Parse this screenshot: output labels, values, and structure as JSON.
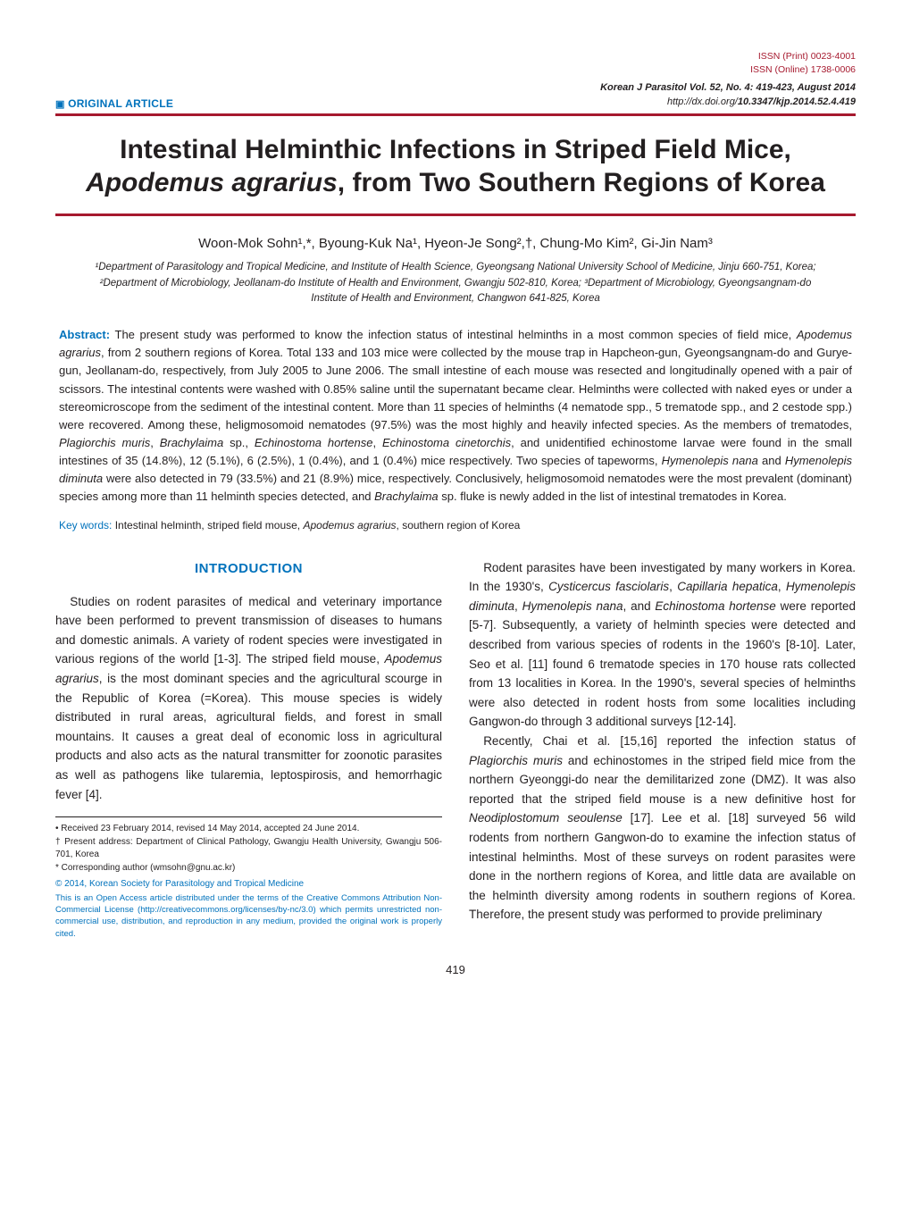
{
  "meta": {
    "issn_print": "ISSN (Print)   0023-4001",
    "issn_online": "ISSN (Online) 1738-0006",
    "article_tag": "ORIGINAL ARTICLE",
    "journal_line": "Korean J Parasitol Vol. 52, No. 4: 419-423, August 2014",
    "doi_prefix": "http://dx.doi.org/",
    "doi_bold": "10.3347/kjp.2014.52.4.419"
  },
  "title": {
    "line1": "Intestinal Helminthic Infections in Striped Field Mice,",
    "line2_italic": "Apodemus agrarius",
    "line2_rest": ", from Two Southern Regions of Korea"
  },
  "authors": "Woon-Mok Sohn¹,*, Byoung-Kuk Na¹, Hyeon-Je Song²,†, Chung-Mo Kim², Gi-Jin Nam³",
  "affils": "¹Department of Parasitology and Tropical Medicine, and Institute of Health Science, Gyeongsang National University School of Medicine, Jinju 660-751, Korea; ²Department of Microbiology, Jeollanam-do Institute of Health and Environment, Gwangju 502-810, Korea; ³Department of Microbiology, Gyeongsangnam-do Institute of Health and Environment, Changwon 641-825, Korea",
  "abstract": {
    "label": "Abstract:",
    "text_parts": [
      " The present study was performed to know the infection status of intestinal helminths in a most common species of field mice, ",
      {
        "i": "Apodemus agrarius"
      },
      ", from 2 southern regions of Korea. Total 133 and 103 mice were collected by the mouse trap in Hapcheon-gun, Gyeongsangnam-do and Gurye-gun, Jeollanam-do, respectively, from July 2005 to June 2006. The small intestine of each mouse was resected and longitudinally opened with a pair of scissors. The intestinal contents were washed with 0.85% saline until the supernatant became clear. Helminths were collected with naked eyes or under a stereomicroscope from the sediment of the intestinal content. More than 11 species of helminths (4 nematode spp., 5 trematode spp., and 2 cestode spp.) were recovered. Among these, heligmosomoid nematodes (97.5%) was the most highly and heavily infected species. As the members of trematodes, ",
      {
        "i": "Plagiorchis muris"
      },
      ", ",
      {
        "i": "Brachylaima"
      },
      " sp., ",
      {
        "i": "Echinostoma hortense"
      },
      ", ",
      {
        "i": "Echinostoma cinetorchis"
      },
      ", and unidentified echinostome larvae were found in the small intestines of 35 (14.8%), 12 (5.1%), 6 (2.5%), 1 (0.4%), and 1 (0.4%) mice respectively. Two species of tapeworms, ",
      {
        "i": "Hymenolepis nana"
      },
      " and ",
      {
        "i": "Hymenolepis diminuta"
      },
      " were also detected in 79 (33.5%) and 21 (8.9%) mice, respectively. Conclusively, heligmosomoid nematodes were the most prevalent (dominant) species among more than 11 helminth species detected, and ",
      {
        "i": "Brachylaima"
      },
      " sp. fluke is newly added in the list of intestinal trematodes in Korea."
    ]
  },
  "keywords": {
    "label": "Key words:",
    "text": " Intestinal helminth, striped field mouse, ",
    "italic": "Apodemus agrarius",
    "tail": ", southern region of Korea"
  },
  "section_head": "INTRODUCTION",
  "left_col": {
    "p1_a": "Studies on rodent parasites of medical and veterinary importance have been performed to prevent transmission of diseases to humans and domestic animals. A variety of rodent species were investigated in various regions of the world [1-3]. The striped field mouse, ",
    "p1_i": "Apodemus agrarius",
    "p1_b": ", is the most dominant species and the agricultural scourge in the Republic of Korea (=Korea). This mouse species is widely distributed in rural areas, agricultural fields, and forest in small mountains. It causes a great deal of economic loss in agricultural products and also acts as the natural transmitter for zoonotic parasites as well as pathogens like tularemia, leptospirosis, and hemorrhagic fever [4]."
  },
  "right_col": {
    "p1_a": "Rodent parasites have been investigated by many workers in Korea. In the 1930's, ",
    "p1_i1": "Cysticercus fasciolaris",
    "p1_b": ", ",
    "p1_i2": "Capillaria hepatica",
    "p1_c": ", ",
    "p1_i3": "Hymenolepis diminuta",
    "p1_d": ", ",
    "p1_i4": "Hymenolepis nana",
    "p1_e": ", and ",
    "p1_i5": "Echinostoma hortense",
    "p1_f": " were reported [5-7]. Subsequently, a variety of helminth species were detected and described from various species of rodents in the 1960's [8-10]. Later, Seo et al. [11] found 6 trematode species in 170 house rats collected from 13 localities in Korea. In the 1990's, several species of helminths were also detected in rodent hosts from some localities including Gangwon-do through 3 additional surveys [12-14].",
    "p2_a": "Recently, Chai et al. [15,16] reported the infection status of ",
    "p2_i1": "Plagiorchis muris",
    "p2_b": " and echinostomes in the striped field mice from the northern Gyeonggi-do near the demilitarized zone (DMZ). It was also reported that the striped field mouse is a new definitive host for ",
    "p2_i2": "Neodiplostomum seoulense",
    "p2_c": " [17]. Lee et al. [18] surveyed 56 wild rodents from northern Gangwon-do to examine the infection status of intestinal helminths. Most of these surveys on rodent parasites were done in the northern regions of Korea, and little data are available on the helminth diversity among rodents in southern regions of Korea. Therefore, the present study was performed to provide preliminary"
  },
  "footnotes": {
    "received": "• Received 23 February 2014, revised 14 May 2014, accepted 24 June 2014.",
    "present": "† Present address: Department of Clinical Pathology, Gwangju Health University, Gwangju 506-701, Korea",
    "corresponding": "* Corresponding author (wmsohn@gnu.ac.kr)",
    "oa": "© 2014, Korean Society for Parasitology and Tropical Medicine",
    "license": "This is an Open Access article distributed under the terms of the Creative Commons Attribution Non-Commercial License (http://creativecommons.org/licenses/by-nc/3.0) which permits unrestricted non-commercial use, distribution, and reproduction in any medium, provided the original work is properly cited."
  },
  "page_number": "419",
  "colors": {
    "accent_blue": "#0072bc",
    "accent_red": "#a6192e",
    "text": "#231f20",
    "background": "#ffffff"
  },
  "typography": {
    "title_pt": 30,
    "authors_pt": 15,
    "affils_pt": 11.5,
    "abstract_pt": 13,
    "body_pt": 13.5,
    "footnote_pt": 10,
    "license_pt": 9.5
  }
}
